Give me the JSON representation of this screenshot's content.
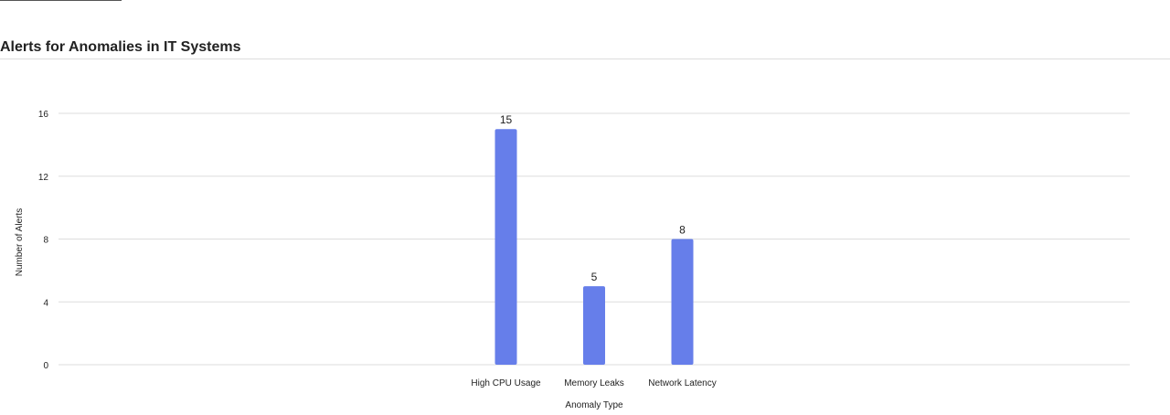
{
  "chart_data": {
    "type": "bar",
    "title": "Alerts for Anomalies in IT Systems",
    "categories": [
      "High CPU Usage",
      "Memory Leaks",
      "Network Latency"
    ],
    "values": [
      15,
      5,
      8
    ],
    "xlabel": "Anomaly Type",
    "ylabel": "Number of Alerts",
    "ylim": [
      0,
      16
    ],
    "yticks": [
      0,
      4,
      8,
      12,
      16
    ],
    "grid": true,
    "bar_color": "#667eea",
    "grid_color": "#dddddd"
  }
}
